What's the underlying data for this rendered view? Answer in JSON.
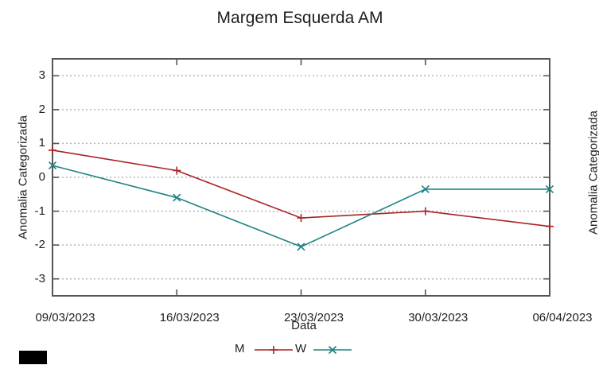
{
  "chart_data": {
    "type": "line",
    "title": "Margem Esquerda AM",
    "xlabel": "Data",
    "ylabel": "Anomalia Categorizada",
    "categories": [
      "09/03/2023",
      "16/03/2023",
      "23/03/2023",
      "30/03/2023",
      "06/04/2023"
    ],
    "series": [
      {
        "name": "M",
        "color": "#aa2323",
        "marker": "plus",
        "values": [
          0.8,
          0.2,
          -1.2,
          -1.0,
          -1.45
        ]
      },
      {
        "name": "W",
        "color": "#1e8282",
        "marker": "cross",
        "values": [
          0.35,
          -0.6,
          -2.05,
          -0.35,
          -0.35
        ]
      }
    ],
    "yticks": [
      3,
      2,
      1,
      0,
      -1,
      -2,
      -3
    ],
    "ylim": [
      -3.5,
      3.5
    ],
    "grid": "horizontal-dotted",
    "legend_position": "bottom-center",
    "colors": {
      "border": "#555555",
      "grid": "#b5b5b5",
      "text": "#1f1f1f"
    }
  },
  "second_chart_fragment": {
    "ylabel": "Anomalia Categorizada"
  }
}
